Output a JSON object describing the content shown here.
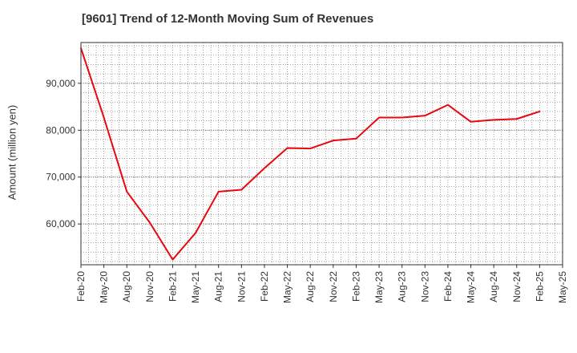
{
  "chart_data": {
    "type": "line",
    "title": "[9601]  Trend of 12-Month Moving Sum of Revenues",
    "xlabel": "",
    "ylabel": "Amount (million yen)",
    "x_ticks": [
      "Feb-20",
      "May-20",
      "Aug-20",
      "Nov-20",
      "Feb-21",
      "May-21",
      "Aug-21",
      "Nov-21",
      "Feb-22",
      "May-22",
      "Aug-22",
      "Nov-22",
      "Feb-23",
      "May-23",
      "Aug-23",
      "Nov-23",
      "Feb-24",
      "May-24",
      "Aug-24",
      "Nov-24",
      "Feb-25",
      "May-25"
    ],
    "y_ticks": [
      "60,000",
      "70,000",
      "80,000",
      "90,000"
    ],
    "ylim": [
      51300,
      98700
    ],
    "grid": true,
    "series": [
      {
        "name": "",
        "color": "#e8090f",
        "x": [
          "Feb-20",
          "May-20",
          "Aug-20",
          "Nov-20",
          "Feb-21",
          "May-21",
          "Aug-21",
          "Nov-21",
          "Feb-22",
          "May-22",
          "Aug-22",
          "Nov-22",
          "Feb-23",
          "May-23",
          "Aug-23",
          "Nov-23",
          "Feb-24",
          "May-24",
          "Aug-24",
          "Nov-24",
          "Feb-25"
        ],
        "values": [
          97500,
          82700,
          66900,
          60300,
          52400,
          58100,
          66900,
          67300,
          71900,
          76200,
          76100,
          77800,
          78200,
          82700,
          82700,
          83100,
          85400,
          81800,
          82200,
          82400,
          84000
        ]
      }
    ]
  }
}
